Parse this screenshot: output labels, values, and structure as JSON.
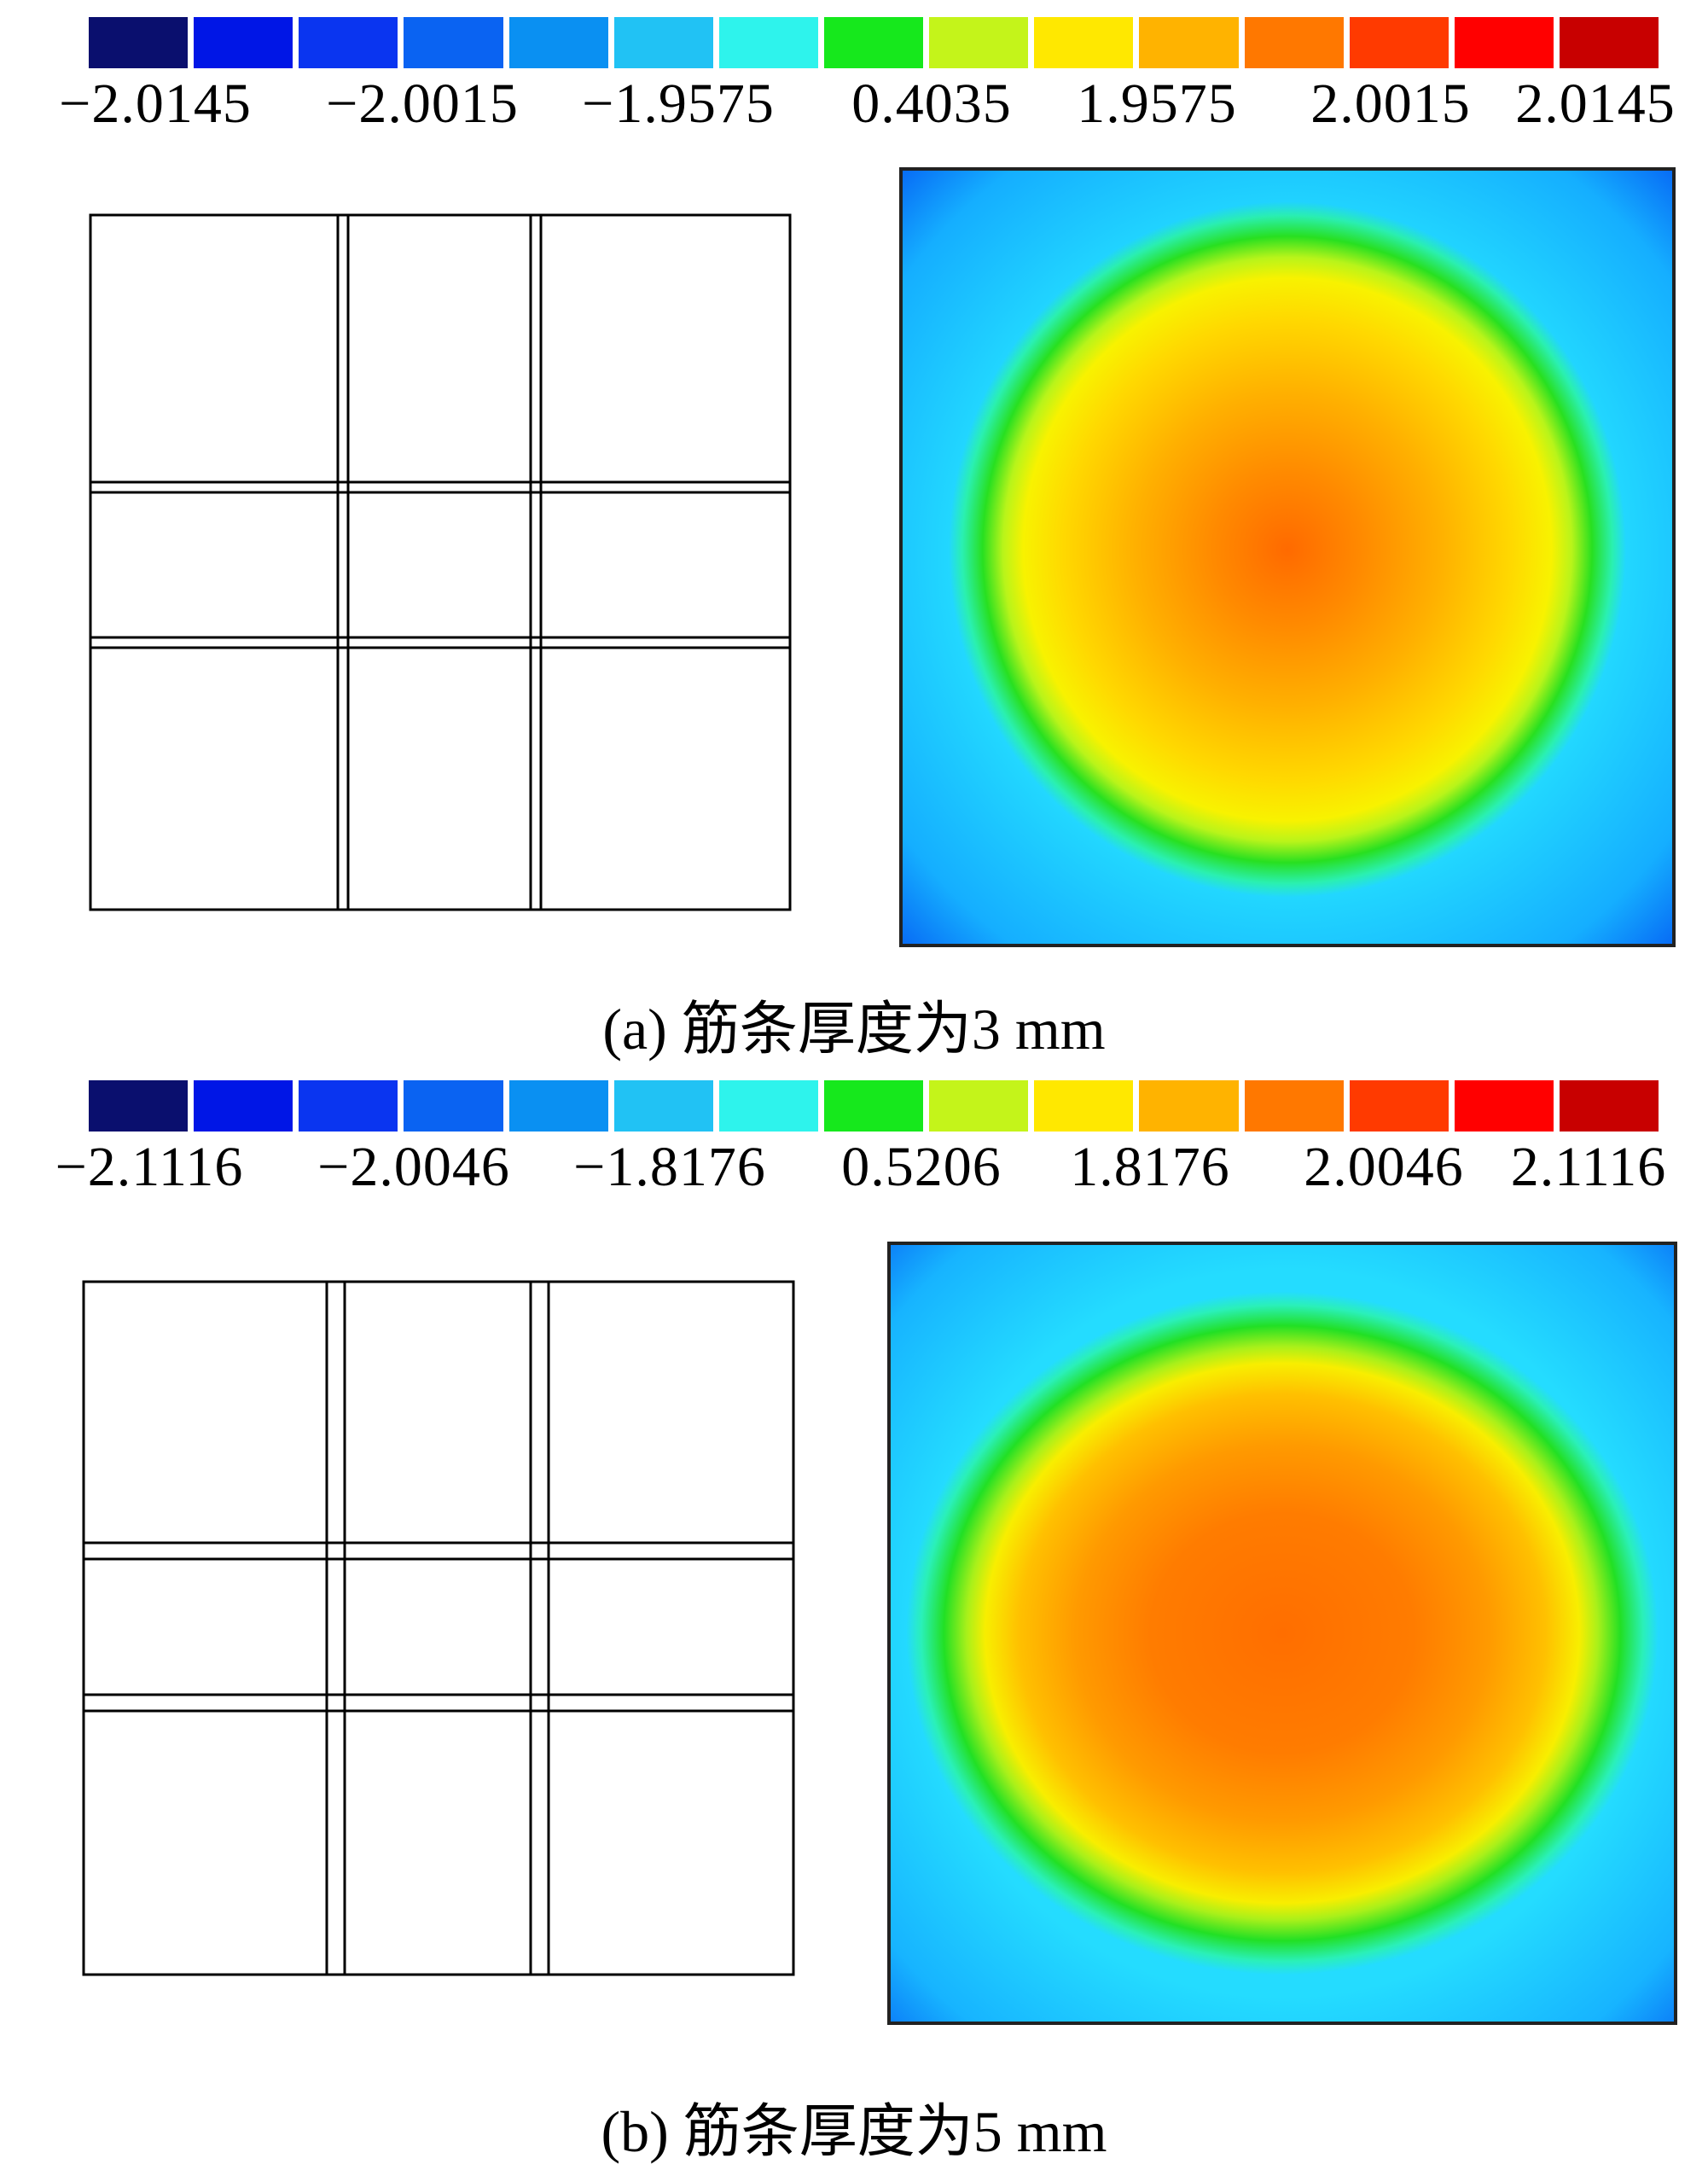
{
  "panel_a": {
    "caption": "(a) 筋条厚度为3 mm",
    "colorbar_colors": [
      "#0a0f6e",
      "#0016e6",
      "#0a35f0",
      "#0a63f2",
      "#0a90f2",
      "#21c2f4",
      "#2ef3ec",
      "#16e81c",
      "#c4f41a",
      "#ffe800",
      "#ffb300",
      "#ff7800",
      "#ff3a00",
      "#ff0000",
      "#c80000"
    ],
    "tick_labels": [
      "−2.0145",
      "−2.0015",
      "−1.9575",
      "0.4035",
      "1.9575",
      "2.0015",
      "2.0145"
    ]
  },
  "panel_b": {
    "caption": "(b) 筋条厚度为5 mm",
    "colorbar_colors": [
      "#0a0f6e",
      "#0016e6",
      "#0a35f0",
      "#0a63f2",
      "#0a90f2",
      "#21c2f4",
      "#2ef3ec",
      "#16e81c",
      "#c4f41a",
      "#ffe800",
      "#ffb300",
      "#ff7800",
      "#ff3a00",
      "#ff0000",
      "#c80000"
    ],
    "tick_labels": [
      "−2.1116",
      "−2.0046",
      "−1.8176",
      "0.5206",
      "1.8176",
      "2.0046",
      "2.1116"
    ]
  }
}
